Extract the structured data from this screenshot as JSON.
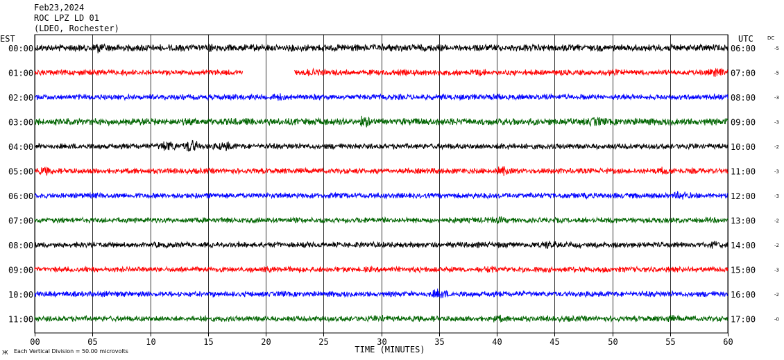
{
  "header": {
    "date": "Feb23,2024",
    "station": "ROC LPZ LD 01",
    "network": "(LDEO, Rochester)"
  },
  "tz_left": "EST",
  "tz_right": "UTC",
  "dc_label": "DC",
  "footer_note": "Each Vertical Division =   50.00 microvolts",
  "colors": {
    "black": "#000000",
    "red": "#ff0000",
    "blue": "#0000ff",
    "green": "#006400",
    "grid": "#000000"
  },
  "chart_data": {
    "type": "line",
    "xlabel": "TIME (MINUTES)",
    "xlim": [
      0,
      60
    ],
    "x_ticks": [
      "00",
      "05",
      "10",
      "15",
      "20",
      "25",
      "30",
      "35",
      "40",
      "45",
      "50",
      "55",
      "60"
    ],
    "x_tick_values": [
      0,
      5,
      10,
      15,
      20,
      25,
      30,
      35,
      40,
      45,
      50,
      55,
      60
    ],
    "rows": [
      {
        "left": "00:00",
        "right": "06:00",
        "dc": "-5",
        "color": "black",
        "amp": 5,
        "events": [
          {
            "t": 5.5,
            "a": 1.6
          },
          {
            "t": 15.2,
            "a": 1.3
          }
        ]
      },
      {
        "left": "01:00",
        "right": "07:00",
        "dc": "-5",
        "color": "red",
        "amp": 4,
        "gap": [
          18.0,
          22.5
        ],
        "events": [
          {
            "t": 24.0,
            "a": 1.4
          },
          {
            "t": 38.5,
            "a": 1.5
          },
          {
            "t": 50.0,
            "a": 1.8
          },
          {
            "t": 59.0,
            "a": 1.7
          }
        ]
      },
      {
        "left": "02:00",
        "right": "08:00",
        "dc": "-3",
        "color": "blue",
        "amp": 4,
        "events": [
          {
            "t": 21.0,
            "a": 1.5
          },
          {
            "t": 40.0,
            "a": 1.3
          }
        ]
      },
      {
        "left": "03:00",
        "right": "09:00",
        "dc": "-3",
        "color": "green",
        "amp": 5,
        "events": [
          {
            "t": 28.5,
            "a": 1.9
          },
          {
            "t": 48.5,
            "a": 1.6
          }
        ]
      },
      {
        "left": "04:00",
        "right": "10:00",
        "dc": "-2",
        "color": "black",
        "amp": 4,
        "events": [
          {
            "t": 11.5,
            "a": 2.4
          },
          {
            "t": 13.5,
            "a": 3.0
          },
          {
            "t": 16.5,
            "a": 1.8
          },
          {
            "t": 40.5,
            "a": 1.5
          }
        ]
      },
      {
        "left": "05:00",
        "right": "11:00",
        "dc": "-3",
        "color": "red",
        "amp": 4,
        "events": [
          {
            "t": 1.0,
            "a": 1.6
          },
          {
            "t": 40.5,
            "a": 1.9
          },
          {
            "t": 54.5,
            "a": 1.7
          }
        ]
      },
      {
        "left": "06:00",
        "right": "12:00",
        "dc": "-3",
        "color": "blue",
        "amp": 4,
        "events": [
          {
            "t": 56.0,
            "a": 1.8
          }
        ]
      },
      {
        "left": "07:00",
        "right": "13:00",
        "dc": "-2",
        "color": "green",
        "amp": 4,
        "events": [
          {
            "t": 40.0,
            "a": 1.5
          }
        ]
      },
      {
        "left": "08:00",
        "right": "14:00",
        "dc": "-2",
        "color": "black",
        "amp": 4,
        "events": [
          {
            "t": 44.5,
            "a": 1.6
          },
          {
            "t": 59.0,
            "a": 1.5
          }
        ]
      },
      {
        "left": "09:00",
        "right": "15:00",
        "dc": "-3",
        "color": "red",
        "amp": 4,
        "events": [
          {
            "t": 39.5,
            "a": 1.5
          }
        ]
      },
      {
        "left": "10:00",
        "right": "16:00",
        "dc": "-2",
        "color": "blue",
        "amp": 4,
        "events": [
          {
            "t": 35.0,
            "a": 2.0
          }
        ]
      },
      {
        "left": "11:00",
        "right": "17:00",
        "dc": "-0",
        "color": "green",
        "amp": 4,
        "events": [
          {
            "t": 30.0,
            "a": 1.5
          },
          {
            "t": 40.0,
            "a": 1.5
          },
          {
            "t": 55.0,
            "a": 1.4
          }
        ]
      }
    ]
  }
}
